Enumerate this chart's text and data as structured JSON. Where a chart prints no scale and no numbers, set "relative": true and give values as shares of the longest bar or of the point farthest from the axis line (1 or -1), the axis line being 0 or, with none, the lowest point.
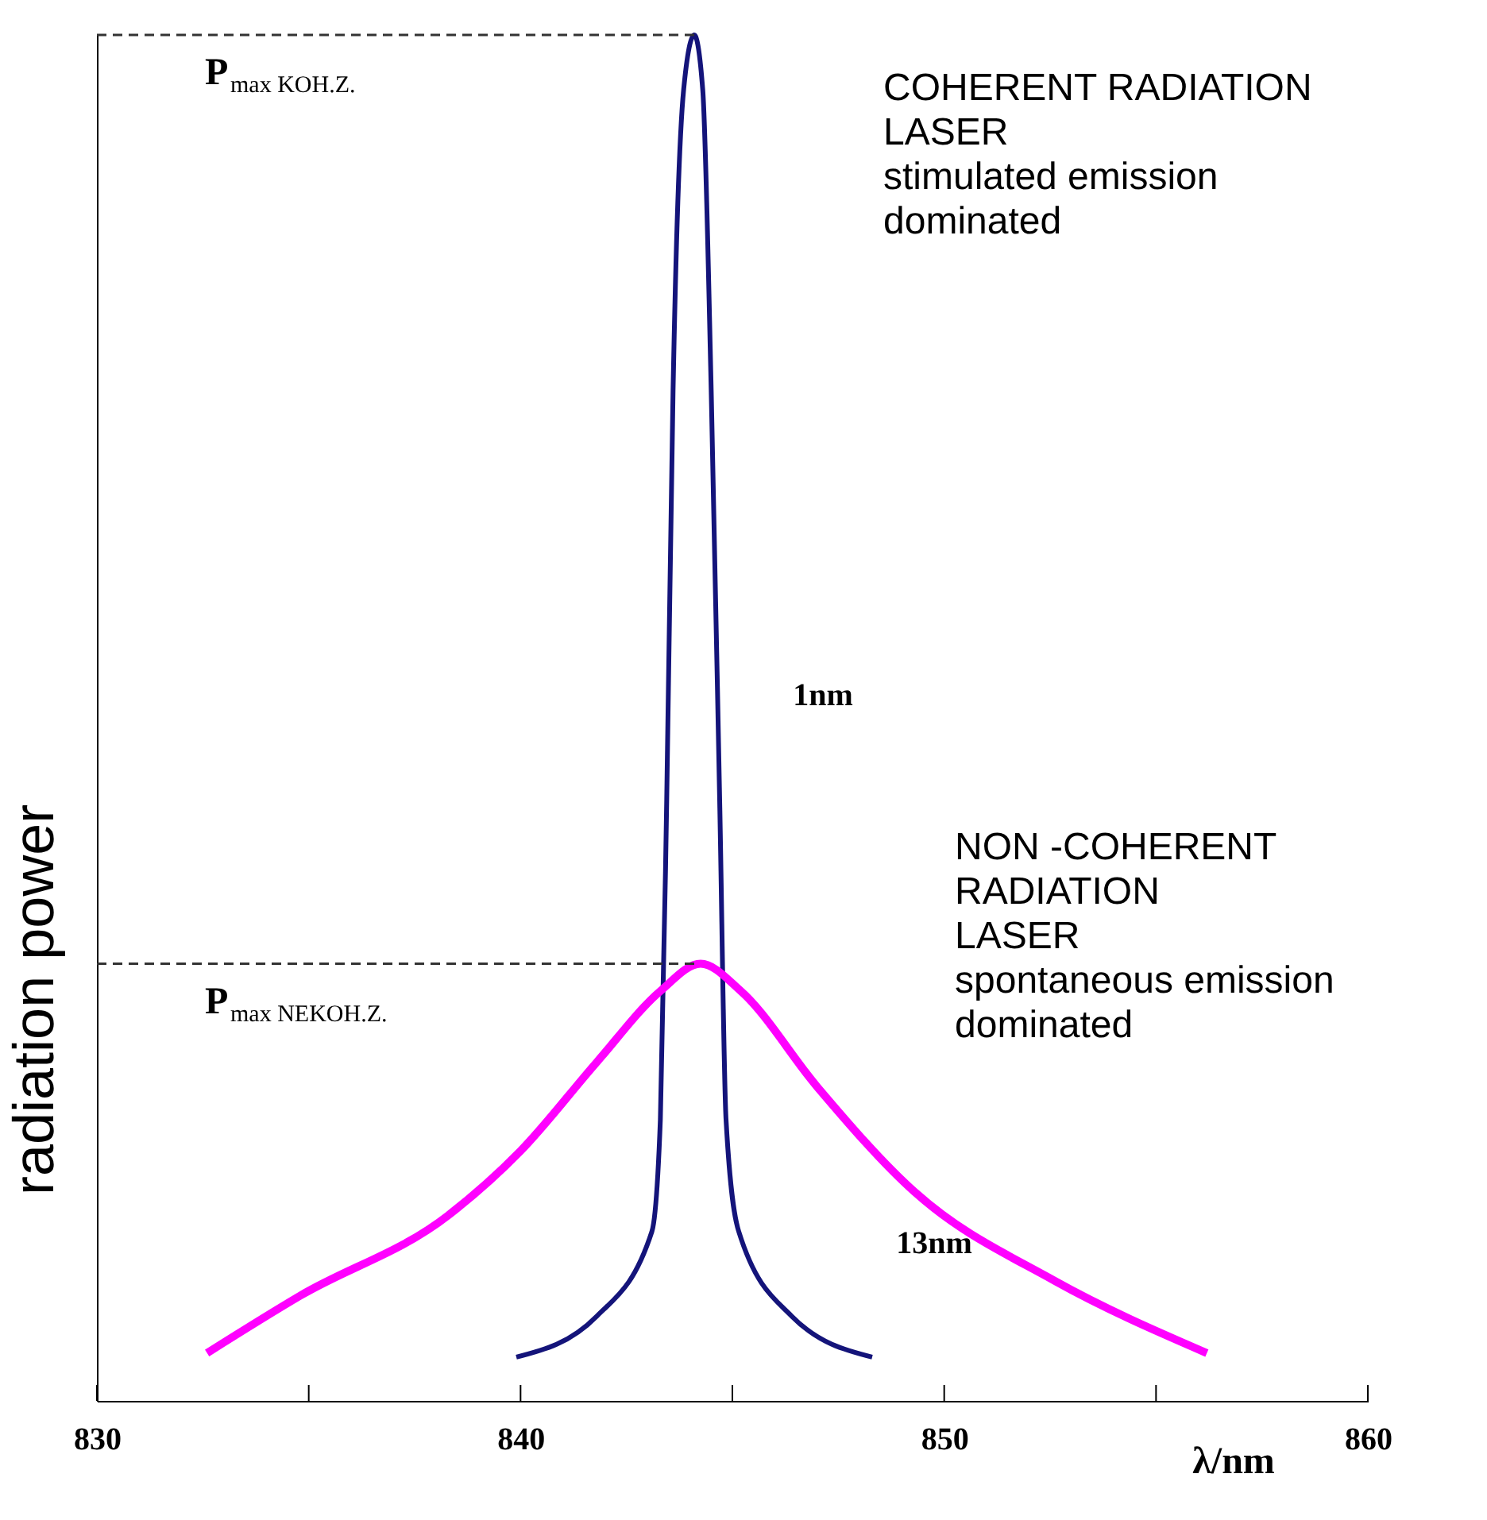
{
  "chart_data": {
    "type": "line",
    "relative": true,
    "xlabel": "λ/nm",
    "ylabel": "radiation power",
    "xlim": [
      830,
      860
    ],
    "xticks": [
      830,
      {
        "value": 835,
        "label": null
      },
      840,
      {
        "value": 845,
        "label": null
      },
      850,
      {
        "value": 855,
        "label": null
      },
      860
    ],
    "grid": false,
    "marker": "none",
    "line_style": "solid",
    "series": [
      {
        "color": "#14147a",
        "x": [
          839.9,
          841.8,
          843.1,
          843.3,
          843.45,
          843.6,
          843.85,
          844.1,
          844.3,
          844.5,
          844.7,
          844.85,
          845.15,
          846.4,
          848.3
        ],
        "values": [
          0.032,
          0.062,
          0.124,
          0.206,
          0.44,
          0.74,
          0.96,
          1,
          0.96,
          0.74,
          0.44,
          0.206,
          0.124,
          0.062,
          0.032
        ]
      },
      {
        "color": "#ff00ff",
        "x": [
          832.6,
          834.8,
          838.3,
          840.0,
          841.8,
          843.3,
          844.25,
          845.2,
          847.0,
          849.3,
          852.6,
          856.2
        ],
        "values": [
          0.035,
          0.077,
          0.136,
          0.183,
          0.248,
          0.3,
          0.32,
          0.3,
          0.23,
          0.153,
          0.088,
          0.035
        ]
      }
    ],
    "ref_lines": [
      {
        "axis": "y",
        "value": 1,
        "label": "P$_{max KOH.Z.}$",
        "line_style": "dashed",
        "color": "#333333"
      },
      {
        "axis": "y",
        "value": 0.32,
        "label": "P$_{max NEKOH.Z.}$",
        "line_style": "dashed",
        "color": "#333333"
      }
    ],
    "annotations": [
      "COHERENT RADIATION\nLASER\nstimulated emission\ndominated",
      "NON -COHERENT\nRADIATION\nLASER\nspontaneous emission\ndominated",
      "1nm",
      "13nm"
    ]
  }
}
